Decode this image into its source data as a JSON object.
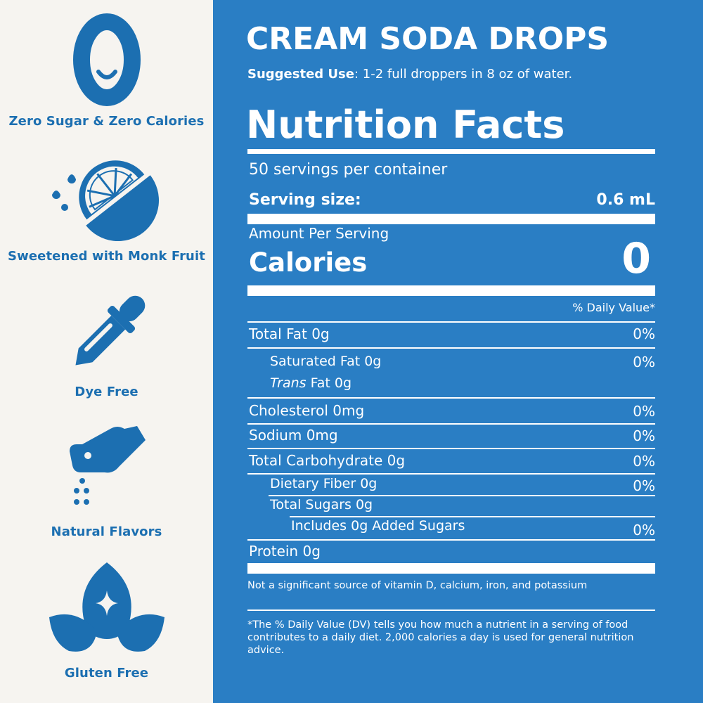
{
  "features": [
    {
      "icon": "zero-icon",
      "label": "Zero Sugar & Zero Calories"
    },
    {
      "icon": "lemon-icon",
      "label": "Sweetened with Monk Fruit"
    },
    {
      "icon": "dropper-icon",
      "label": "Dye Free"
    },
    {
      "icon": "pinch-hand-icon",
      "label": "Natural Flavors"
    },
    {
      "icon": "leaves-icon",
      "label": "Gluten Free"
    }
  ],
  "product": {
    "title": "CREAM SODA DROPS",
    "use_label": "Suggested Use",
    "use_text": ": 1-2 full droppers in 8 oz of water."
  },
  "label": {
    "heading": "Nutrition Facts",
    "servings": "50 servings per container",
    "serving_size_label": "Serving size:",
    "serving_size_value": "0.6 mL",
    "amount_per_serving": "Amount Per Serving",
    "calories_label": "Calories",
    "calories_value": "0",
    "dv_header": "% Daily Value*",
    "rows": [
      {
        "name": "Total Fat 0g",
        "dv": "0%"
      },
      {
        "name": "Saturated Fat 0g",
        "dv": "0%"
      },
      {
        "name_italic": "Trans",
        "name": " Fat 0g",
        "dv": ""
      },
      {
        "name": "Cholesterol 0mg",
        "dv": "0%"
      },
      {
        "name": "Sodium 0mg",
        "dv": "0%"
      },
      {
        "name": "Total Carbohydrate 0g",
        "dv": "0%"
      },
      {
        "name": "Dietary Fiber 0g",
        "dv": "0%"
      },
      {
        "name": "Total Sugars 0g",
        "dv": ""
      },
      {
        "name": "Includes 0g Added Sugars",
        "dv": "0%"
      },
      {
        "name": "Protein 0g",
        "dv": ""
      }
    ],
    "vitamin_note": "Not a significant source of vitamin D, calcium, iron, and potassium",
    "footnote": "*The % Daily Value (DV) tells you how much a nutrient in a serving of food contributes to a daily diet. 2,000 calories a day is used for general nutrition advice."
  },
  "colors": {
    "accent_blue": "#1c6fb1",
    "panel_blue": "#2a7ec4",
    "cream": "#f6f4f0"
  }
}
